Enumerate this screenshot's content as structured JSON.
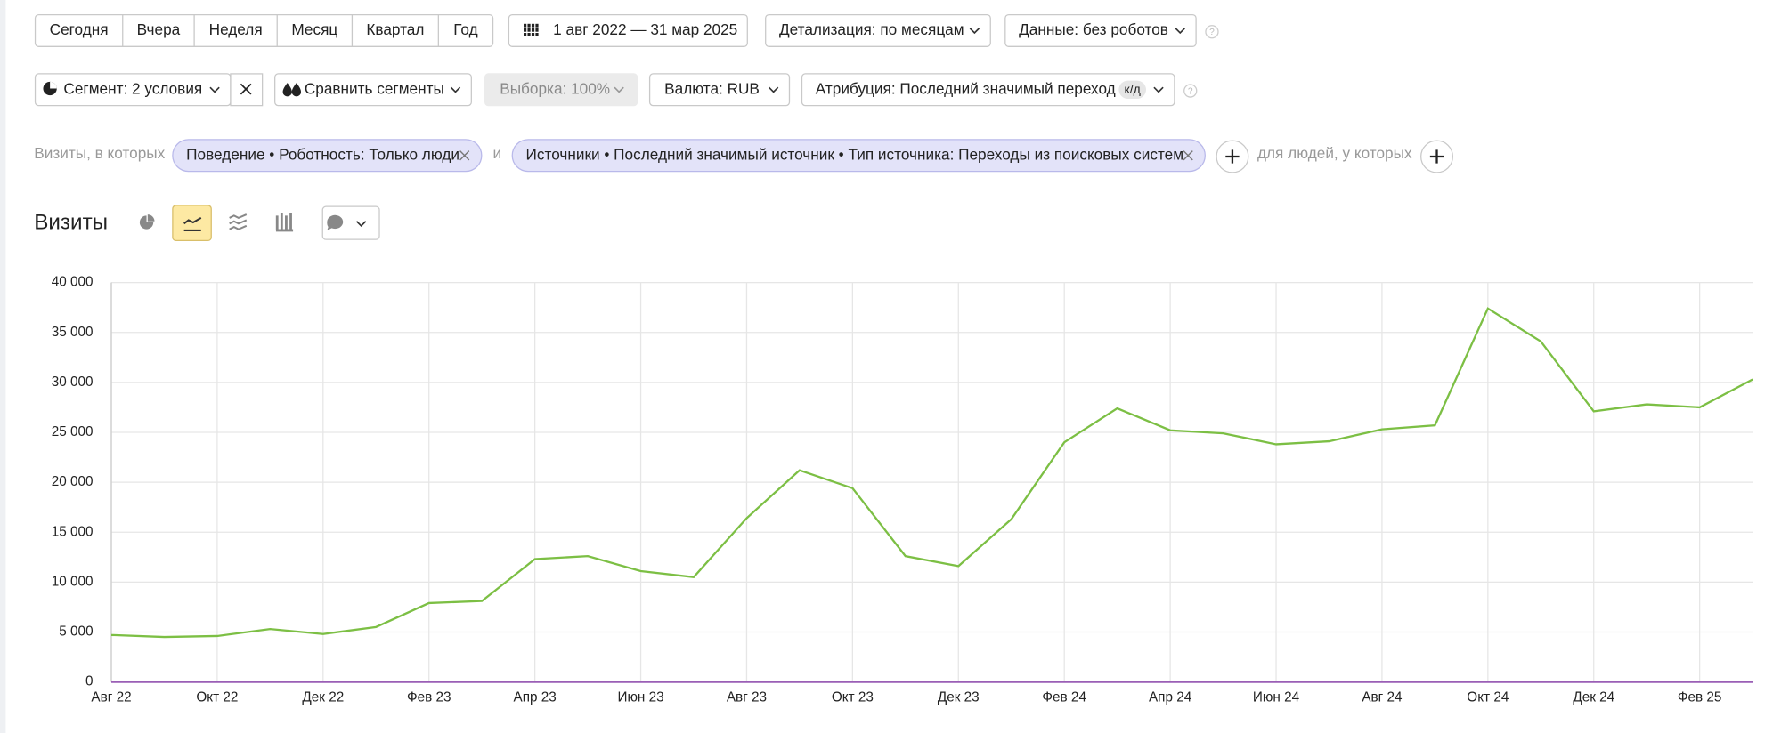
{
  "toolbar": {
    "periods": [
      "Сегодня",
      "Вчера",
      "Неделя",
      "Месяц",
      "Квартал",
      "Год"
    ],
    "date_range": "1 авг 2022 — 31 мар 2025",
    "detail": "Детализация: по месяцам",
    "data_filter": "Данные: без роботов",
    "segment": "Сегмент: 2 условия",
    "compare": "Сравнить сегменты",
    "sample": "Выборка: 100%",
    "currency": "Валюта: RUB",
    "attribution": "Атрибуция: Последний значимый переход",
    "attribution_badge": "к/д"
  },
  "filters": {
    "prefix": "Визиты, в которых",
    "chip_1": "Поведение • Роботность: Только люди",
    "joiner": "и",
    "chip_2": "Источники • Последний значимый источник • Тип источника: Переходы из поисковых систем",
    "people": "для людей, у которых"
  },
  "report_title": "Визиты",
  "chart_data": {
    "type": "line",
    "categories": [
      "Авг 22",
      null,
      "Окт 22",
      null,
      "Дек 22",
      null,
      "Фев 23",
      null,
      "Апр 23",
      null,
      "Июн 23",
      null,
      "Авг 23",
      null,
      "Окт 23",
      null,
      "Дек 23",
      null,
      "Фев 24",
      null,
      "Апр 24",
      null,
      "Июн 24",
      null,
      "Авг 24",
      null,
      "Окт 24",
      null,
      "Дек 24",
      null,
      "Фев 25",
      null
    ],
    "series": [
      {
        "color": "#7cbf44",
        "values": [
          4700,
          4500,
          4600,
          5300,
          4800,
          5500,
          7900,
          8100,
          12300,
          12600,
          11100,
          10500,
          16400,
          21200,
          19400,
          12600,
          11600,
          16300,
          24000,
          27400,
          25200,
          24900,
          23800,
          24100,
          25300,
          25700,
          37400,
          34100,
          27100,
          27800,
          27500,
          30300
        ]
      },
      {
        "color": "#9a5fb5",
        "values": [
          0,
          0,
          0,
          0,
          0,
          0,
          0,
          0,
          0,
          0,
          0,
          0,
          0,
          0,
          0,
          0,
          0,
          0,
          0,
          0,
          0,
          0,
          0,
          0,
          0,
          0,
          0,
          0,
          0,
          0,
          0,
          0
        ]
      }
    ],
    "ylim": [
      0,
      40000
    ],
    "yticks": [
      0,
      {
        "value": 5000,
        "label": "5 000"
      },
      {
        "value": 10000,
        "label": "10 000"
      },
      {
        "value": 15000,
        "label": "15 000"
      },
      {
        "value": 20000,
        "label": "20 000"
      },
      {
        "value": 25000,
        "label": "25 000"
      },
      {
        "value": 30000,
        "label": "30 000"
      },
      {
        "value": 35000,
        "label": "35 000"
      },
      {
        "value": 40000,
        "label": "40 000"
      }
    ],
    "grid": true
  }
}
